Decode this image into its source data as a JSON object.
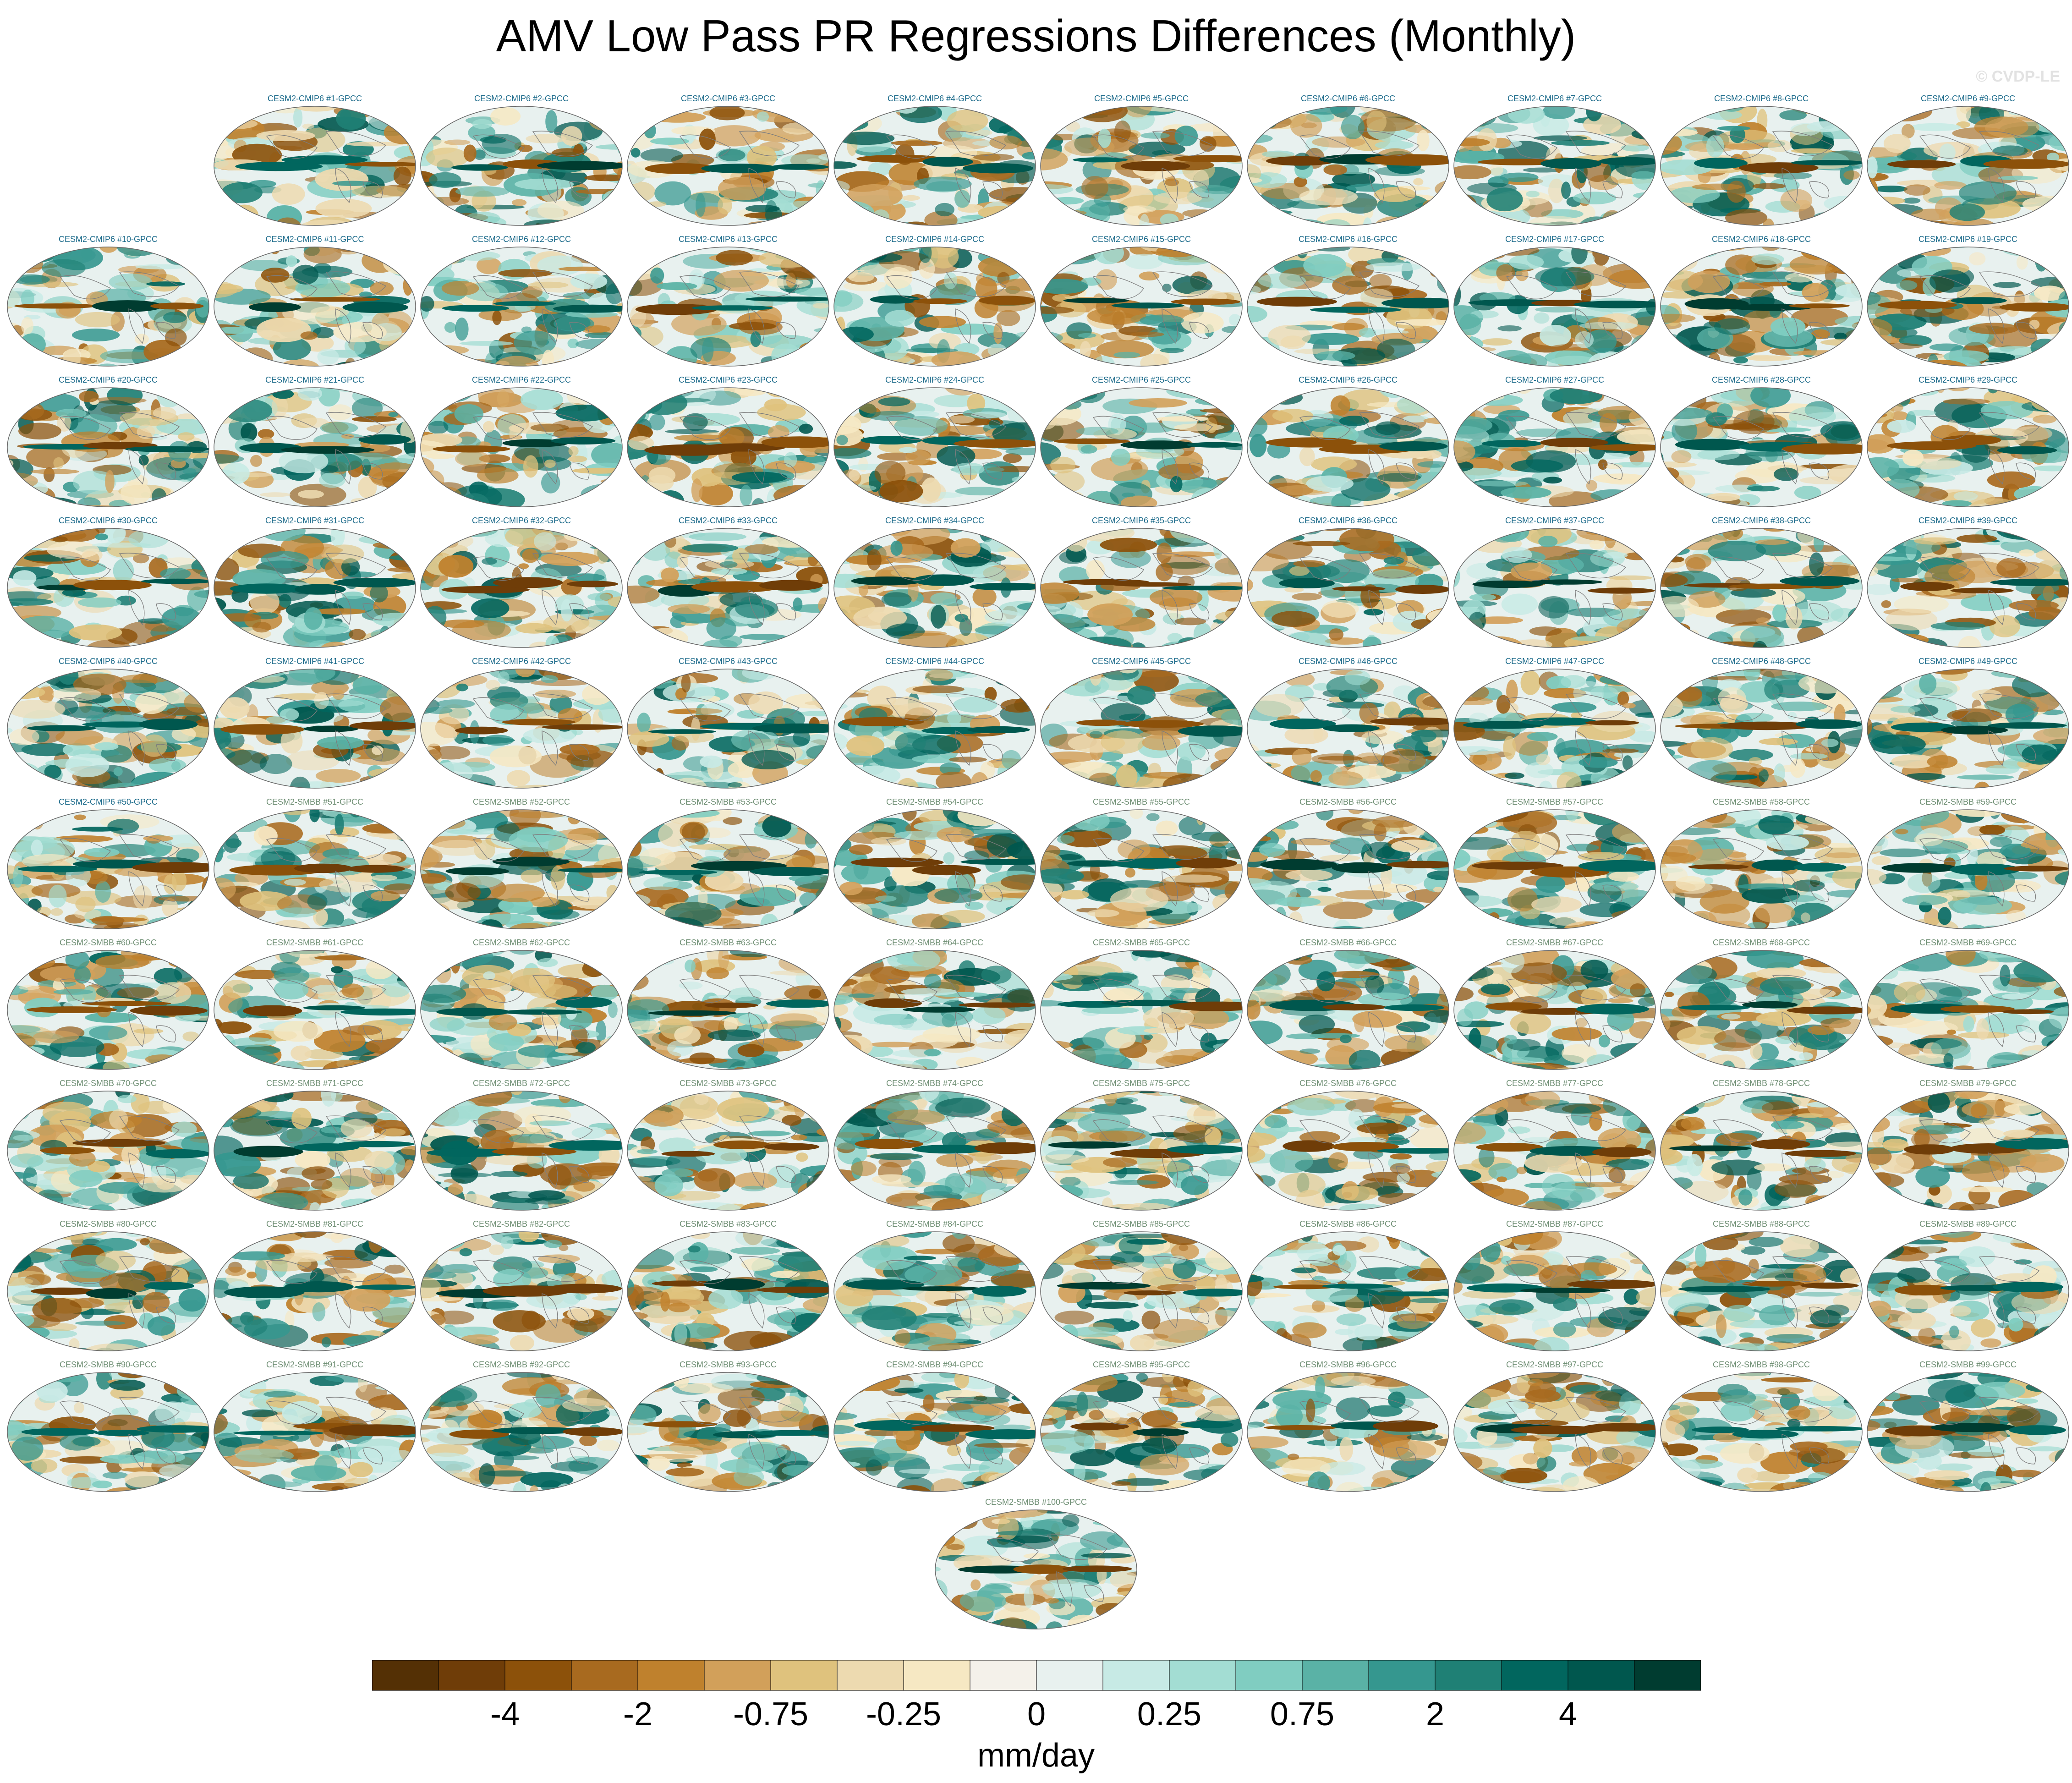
{
  "title": "AMV Low Pass PR Regressions Differences (Monthly)",
  "watermark": "© CVDP-LE",
  "panel_labels": [
    "CESM2-CMIP6 #1-GPCC",
    "CESM2-CMIP6 #2-GPCC",
    "CESM2-CMIP6 #3-GPCC",
    "CESM2-CMIP6 #4-GPCC",
    "CESM2-CMIP6 #5-GPCC",
    "CESM2-CMIP6 #6-GPCC",
    "CESM2-CMIP6 #7-GPCC",
    "CESM2-CMIP6 #8-GPCC",
    "CESM2-CMIP6 #9-GPCC",
    "CESM2-CMIP6 #10-GPCC",
    "CESM2-CMIP6 #11-GPCC",
    "CESM2-CMIP6 #12-GPCC",
    "CESM2-CMIP6 #13-GPCC",
    "CESM2-CMIP6 #14-GPCC",
    "CESM2-CMIP6 #15-GPCC",
    "CESM2-CMIP6 #16-GPCC",
    "CESM2-CMIP6 #17-GPCC",
    "CESM2-CMIP6 #18-GPCC",
    "CESM2-CMIP6 #19-GPCC",
    "CESM2-CMIP6 #20-GPCC",
    "CESM2-CMIP6 #21-GPCC",
    "CESM2-CMIP6 #22-GPCC",
    "CESM2-CMIP6 #23-GPCC",
    "CESM2-CMIP6 #24-GPCC",
    "CESM2-CMIP6 #25-GPCC",
    "CESM2-CMIP6 #26-GPCC",
    "CESM2-CMIP6 #27-GPCC",
    "CESM2-CMIP6 #28-GPCC",
    "CESM2-CMIP6 #29-GPCC",
    "CESM2-CMIP6 #30-GPCC",
    "CESM2-CMIP6 #31-GPCC",
    "CESM2-CMIP6 #32-GPCC",
    "CESM2-CMIP6 #33-GPCC",
    "CESM2-CMIP6 #34-GPCC",
    "CESM2-CMIP6 #35-GPCC",
    "CESM2-CMIP6 #36-GPCC",
    "CESM2-CMIP6 #37-GPCC",
    "CESM2-CMIP6 #38-GPCC",
    "CESM2-CMIP6 #39-GPCC",
    "CESM2-CMIP6 #40-GPCC",
    "CESM2-CMIP6 #41-GPCC",
    "CESM2-CMIP6 #42-GPCC",
    "CESM2-CMIP6 #43-GPCC",
    "CESM2-CMIP6 #44-GPCC",
    "CESM2-CMIP6 #45-GPCC",
    "CESM2-CMIP6 #46-GPCC",
    "CESM2-CMIP6 #47-GPCC",
    "CESM2-CMIP6 #48-GPCC",
    "CESM2-CMIP6 #49-GPCC",
    "CESM2-CMIP6 #50-GPCC",
    "CESM2-SMBB #51-GPCC",
    "CESM2-SMBB #52-GPCC",
    "CESM2-SMBB #53-GPCC",
    "CESM2-SMBB #54-GPCC",
    "CESM2-SMBB #55-GPCC",
    "CESM2-SMBB #56-GPCC",
    "CESM2-SMBB #57-GPCC",
    "CESM2-SMBB #58-GPCC",
    "CESM2-SMBB #59-GPCC",
    "CESM2-SMBB #60-GPCC",
    "CESM2-SMBB #61-GPCC",
    "CESM2-SMBB #62-GPCC",
    "CESM2-SMBB #63-GPCC",
    "CESM2-SMBB #64-GPCC",
    "CESM2-SMBB #65-GPCC",
    "CESM2-SMBB #66-GPCC",
    "CESM2-SMBB #67-GPCC",
    "CESM2-SMBB #68-GPCC",
    "CESM2-SMBB #69-GPCC",
    "CESM2-SMBB #70-GPCC",
    "CESM2-SMBB #71-GPCC",
    "CESM2-SMBB #72-GPCC",
    "CESM2-SMBB #73-GPCC",
    "CESM2-SMBB #74-GPCC",
    "CESM2-SMBB #75-GPCC",
    "CESM2-SMBB #76-GPCC",
    "CESM2-SMBB #77-GPCC",
    "CESM2-SMBB #78-GPCC",
    "CESM2-SMBB #79-GPCC",
    "CESM2-SMBB #80-GPCC",
    "CESM2-SMBB #81-GPCC",
    "CESM2-SMBB #82-GPCC",
    "CESM2-SMBB #83-GPCC",
    "CESM2-SMBB #84-GPCC",
    "CESM2-SMBB #85-GPCC",
    "CESM2-SMBB #86-GPCC",
    "CESM2-SMBB #87-GPCC",
    "CESM2-SMBB #88-GPCC",
    "CESM2-SMBB #89-GPCC",
    "CESM2-SMBB #90-GPCC",
    "CESM2-SMBB #91-GPCC",
    "CESM2-SMBB #92-GPCC",
    "CESM2-SMBB #93-GPCC",
    "CESM2-SMBB #94-GPCC",
    "CESM2-SMBB #95-GPCC",
    "CESM2-SMBB #96-GPCC",
    "CESM2-SMBB #97-GPCC",
    "CESM2-SMBB #98-GPCC",
    "CESM2-SMBB #99-GPCC",
    "CESM2-SMBB #100-GPCC"
  ],
  "colorbar": {
    "units": "mm/day",
    "tick_labels": [
      "-4",
      "-2",
      "-0.75",
      "-0.25",
      "0",
      "0.25",
      "0.75",
      "2",
      "4"
    ],
    "colors": [
      "#543005",
      "#6f3d08",
      "#8c510a",
      "#a86a1f",
      "#bf812d",
      "#d2a05a",
      "#dfc27d",
      "#eddab0",
      "#f6e8c3",
      "#f4f1ea",
      "#e8f1ef",
      "#c7eae5",
      "#a3ddd3",
      "#80cdc1",
      "#5ab2a6",
      "#35978f",
      "#1f8075",
      "#01665e",
      "#00574e",
      "#003c30"
    ]
  },
  "colors": {
    "cmip6_label": "#1b6a8a",
    "smbb_label": "#6f8f74"
  }
}
